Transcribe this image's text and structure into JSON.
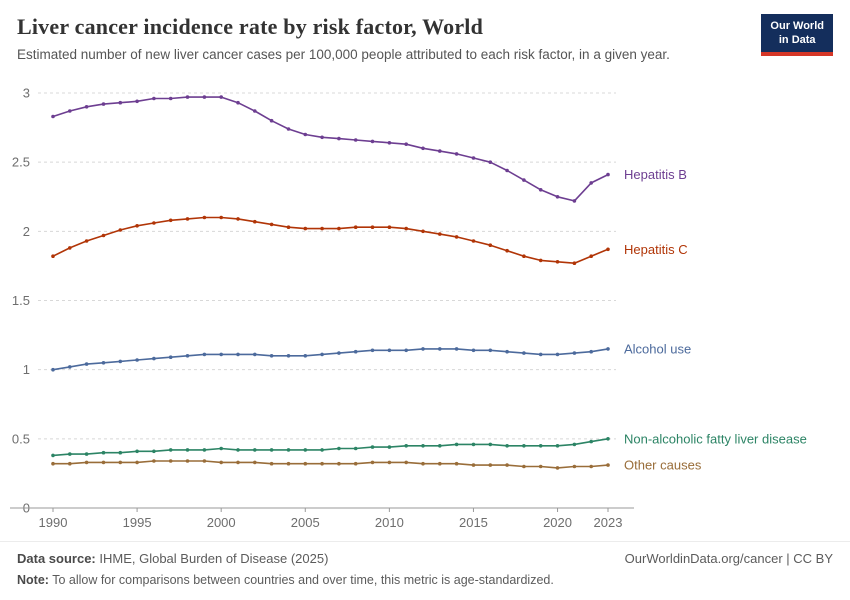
{
  "header": {
    "title": "Liver cancer incidence rate by risk factor, World",
    "subtitle": "Estimated number of new liver cancer cases per 100,000 people attributed to each risk factor, in a given year.",
    "logo_line1": "Our World",
    "logo_line2": "in Data"
  },
  "style": {
    "gridline_color": "#d8d8d8",
    "axis_color": "#9a9a9a",
    "tick_label_color": "#6e6e6e",
    "logo_bg": "#142e5c",
    "logo_stripe": "#d53627"
  },
  "chart_data": {
    "type": "line",
    "title": "Liver cancer incidence rate by risk factor, World",
    "xlabel": "",
    "ylabel": "",
    "xlim": [
      1990,
      2023
    ],
    "ylim": [
      0,
      3
    ],
    "grid": "horizontal-dashed",
    "legend_position": "right-end-labels",
    "x_ticks": [
      1990,
      1995,
      2000,
      2005,
      2010,
      2015,
      2020,
      2023
    ],
    "y_ticks": [
      0,
      0.5,
      1,
      1.5,
      2,
      2.5,
      3
    ],
    "x": [
      1990,
      1991,
      1992,
      1993,
      1994,
      1995,
      1996,
      1997,
      1998,
      1999,
      2000,
      2001,
      2002,
      2003,
      2004,
      2005,
      2006,
      2007,
      2008,
      2009,
      2010,
      2011,
      2012,
      2013,
      2014,
      2015,
      2016,
      2017,
      2018,
      2019,
      2020,
      2021,
      2022,
      2023
    ],
    "series": [
      {
        "name": "Hepatitis B",
        "color": "#6D3E91",
        "values": [
          2.83,
          2.87,
          2.9,
          2.92,
          2.93,
          2.94,
          2.96,
          2.96,
          2.97,
          2.97,
          2.97,
          2.93,
          2.87,
          2.8,
          2.74,
          2.7,
          2.68,
          2.67,
          2.66,
          2.65,
          2.64,
          2.63,
          2.6,
          2.58,
          2.56,
          2.53,
          2.5,
          2.44,
          2.37,
          2.3,
          2.25,
          2.22,
          2.35,
          2.41
        ]
      },
      {
        "name": "Hepatitis C",
        "color": "#B13507",
        "values": [
          1.82,
          1.88,
          1.93,
          1.97,
          2.01,
          2.04,
          2.06,
          2.08,
          2.09,
          2.1,
          2.1,
          2.09,
          2.07,
          2.05,
          2.03,
          2.02,
          2.02,
          2.02,
          2.03,
          2.03,
          2.03,
          2.02,
          2.0,
          1.98,
          1.96,
          1.93,
          1.9,
          1.86,
          1.82,
          1.79,
          1.78,
          1.77,
          1.82,
          1.87
        ]
      },
      {
        "name": "Alcohol use",
        "color": "#4C6A9C",
        "values": [
          1.0,
          1.02,
          1.04,
          1.05,
          1.06,
          1.07,
          1.08,
          1.09,
          1.1,
          1.11,
          1.11,
          1.11,
          1.11,
          1.1,
          1.1,
          1.1,
          1.11,
          1.12,
          1.13,
          1.14,
          1.14,
          1.14,
          1.15,
          1.15,
          1.15,
          1.14,
          1.14,
          1.13,
          1.12,
          1.11,
          1.11,
          1.12,
          1.13,
          1.15
        ]
      },
      {
        "name": "Non-alcoholic fatty liver disease",
        "color": "#2C8465",
        "values": [
          0.38,
          0.39,
          0.39,
          0.4,
          0.4,
          0.41,
          0.41,
          0.42,
          0.42,
          0.42,
          0.43,
          0.42,
          0.42,
          0.42,
          0.42,
          0.42,
          0.42,
          0.43,
          0.43,
          0.44,
          0.44,
          0.45,
          0.45,
          0.45,
          0.46,
          0.46,
          0.46,
          0.45,
          0.45,
          0.45,
          0.45,
          0.46,
          0.48,
          0.5
        ]
      },
      {
        "name": "Other causes",
        "color": "#996D39",
        "values": [
          0.32,
          0.32,
          0.33,
          0.33,
          0.33,
          0.33,
          0.34,
          0.34,
          0.34,
          0.34,
          0.33,
          0.33,
          0.33,
          0.32,
          0.32,
          0.32,
          0.32,
          0.32,
          0.32,
          0.33,
          0.33,
          0.33,
          0.32,
          0.32,
          0.32,
          0.31,
          0.31,
          0.31,
          0.3,
          0.3,
          0.29,
          0.3,
          0.3,
          0.31
        ]
      }
    ]
  },
  "footer": {
    "source_label": "Data source:",
    "source_text": "IHME, Global Burden of Disease (2025)",
    "link_text": "OurWorldinData.org/cancer | CC BY",
    "note_label": "Note:",
    "note_text": "To allow for comparisons between countries and over time, this metric is age-standardized."
  }
}
